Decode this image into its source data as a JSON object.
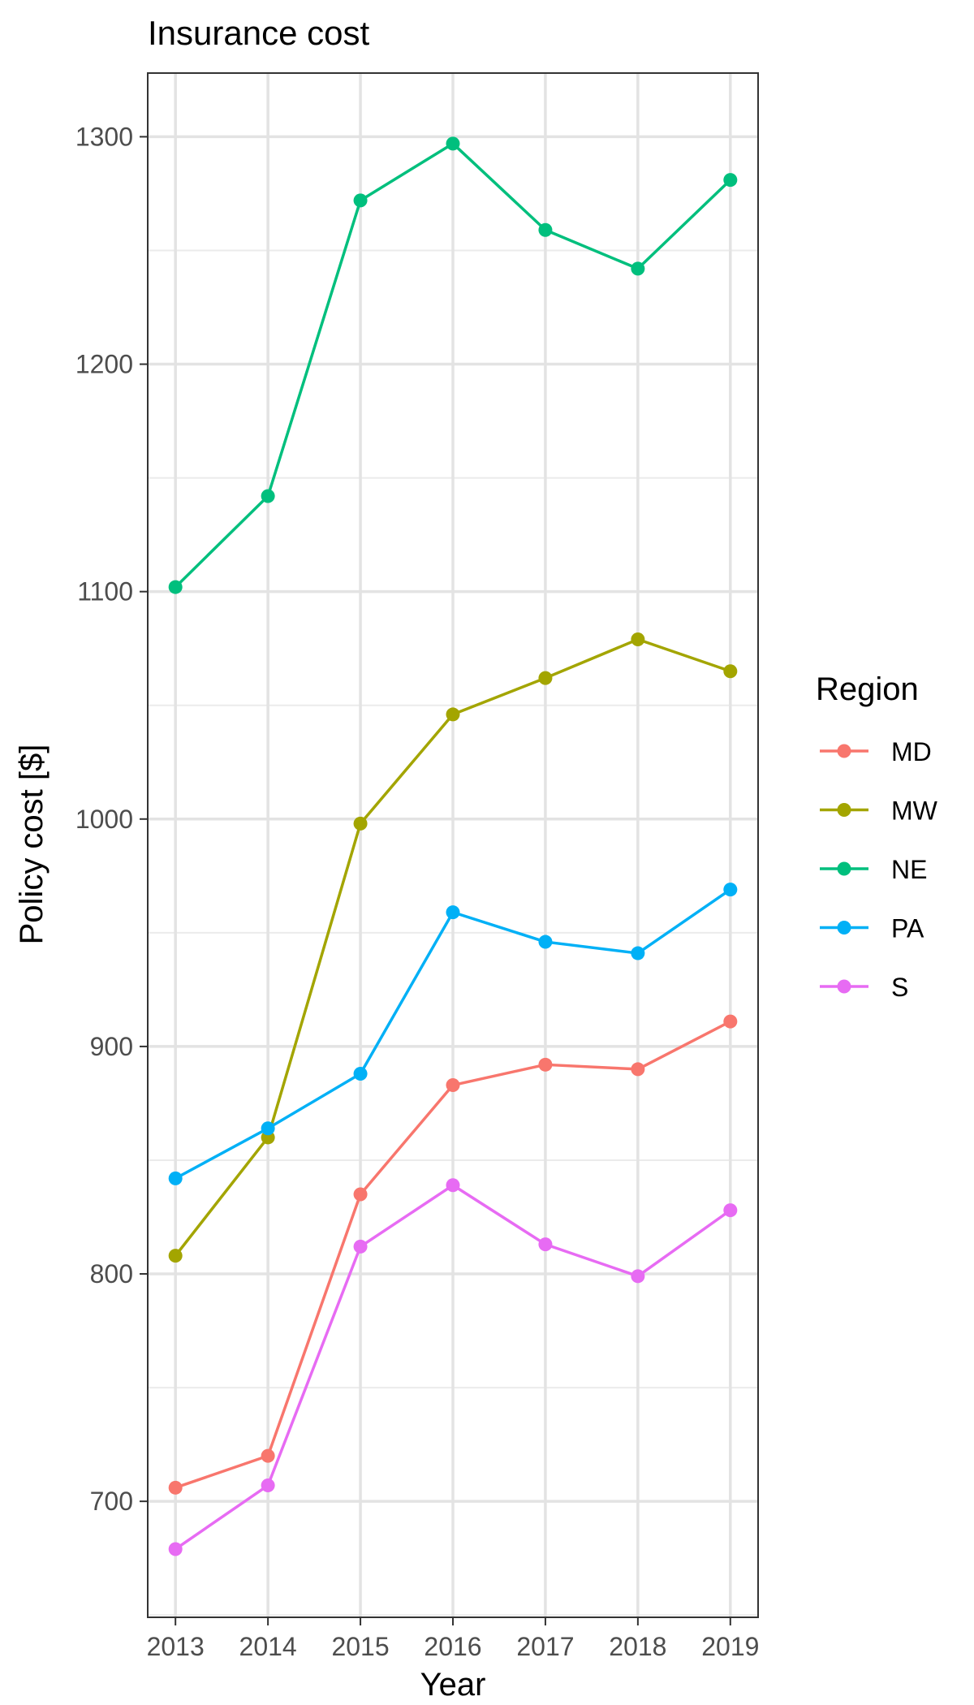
{
  "chart_data": {
    "type": "line",
    "title": "Insurance cost",
    "xlabel": "Year",
    "ylabel": "Policy cost [$]",
    "x": [
      2013,
      2014,
      2015,
      2016,
      2017,
      2018,
      2019
    ],
    "x_tick_labels": [
      "2013",
      "2014",
      "2015",
      "2016",
      "2017",
      "2018",
      "2019"
    ],
    "y_ticks": [
      700,
      800,
      900,
      1000,
      1100,
      1200,
      1300
    ],
    "y_tick_labels": [
      "700",
      "800",
      "900",
      "1000",
      "1100",
      "1200",
      "1300"
    ],
    "ylim": [
      649,
      1328
    ],
    "xlim": [
      2012.7,
      2019.3
    ],
    "grid": true,
    "legend": {
      "title": "Region",
      "position": "right"
    },
    "series": [
      {
        "name": "MD",
        "color": "#F8766D",
        "values": [
          706,
          720,
          835,
          883,
          892,
          890,
          911
        ]
      },
      {
        "name": "MW",
        "color": "#A3A500",
        "values": [
          808,
          860,
          998,
          1046,
          1062,
          1079,
          1065
        ]
      },
      {
        "name": "NE",
        "color": "#00BF7D",
        "values": [
          1102,
          1142,
          1272,
          1297,
          1259,
          1242,
          1281
        ]
      },
      {
        "name": "PA",
        "color": "#00B0F6",
        "values": [
          842,
          864,
          888,
          959,
          946,
          941,
          969
        ]
      },
      {
        "name": "S",
        "color": "#E76BF3",
        "values": [
          679,
          707,
          812,
          839,
          813,
          799,
          828
        ]
      }
    ]
  }
}
